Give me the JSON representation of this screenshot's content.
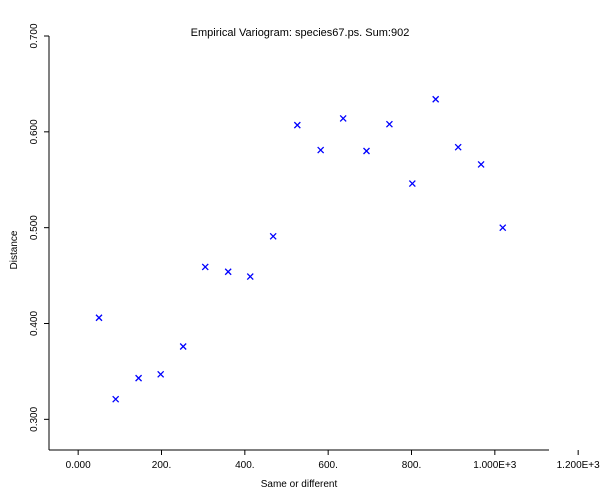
{
  "chart_data": {
    "type": "scatter",
    "title": "Empirical Variogram: species67.ps. Sum:902",
    "xlabel": "Same or different",
    "ylabel": "Distance",
    "xlim": [
      -70,
      1130
    ],
    "ylim": [
      0.268,
      0.7
    ],
    "grid": false,
    "legend": "none",
    "marker": "x",
    "marker_color": "#0000ff",
    "x_ticks": [
      {
        "value": 0,
        "label": "0.000"
      },
      {
        "value": 200,
        "label": "200."
      },
      {
        "value": 400,
        "label": "400."
      },
      {
        "value": 600,
        "label": "600."
      },
      {
        "value": 800,
        "label": "800."
      },
      {
        "value": 1000,
        "label": "1.000E+3"
      },
      {
        "value": 1200,
        "label": "1.200E+3"
      }
    ],
    "y_ticks": [
      {
        "value": 0.3,
        "label": "0.300"
      },
      {
        "value": 0.4,
        "label": "0.400"
      },
      {
        "value": 0.5,
        "label": "0.500"
      },
      {
        "value": 0.6,
        "label": "0.600"
      },
      {
        "value": 0.7,
        "label": "0.700"
      }
    ],
    "points": [
      {
        "x": 50,
        "y": 0.406
      },
      {
        "x": 90,
        "y": 0.321
      },
      {
        "x": 145,
        "y": 0.343
      },
      {
        "x": 198,
        "y": 0.347
      },
      {
        "x": 252,
        "y": 0.376
      },
      {
        "x": 305,
        "y": 0.459
      },
      {
        "x": 360,
        "y": 0.454
      },
      {
        "x": 413,
        "y": 0.449
      },
      {
        "x": 468,
        "y": 0.491
      },
      {
        "x": 526,
        "y": 0.607
      },
      {
        "x": 582,
        "y": 0.581
      },
      {
        "x": 636,
        "y": 0.614
      },
      {
        "x": 692,
        "y": 0.58
      },
      {
        "x": 747,
        "y": 0.608
      },
      {
        "x": 802,
        "y": 0.546
      },
      {
        "x": 858,
        "y": 0.634
      },
      {
        "x": 912,
        "y": 0.584
      },
      {
        "x": 967,
        "y": 0.566
      },
      {
        "x": 1019,
        "y": 0.5
      }
    ]
  }
}
